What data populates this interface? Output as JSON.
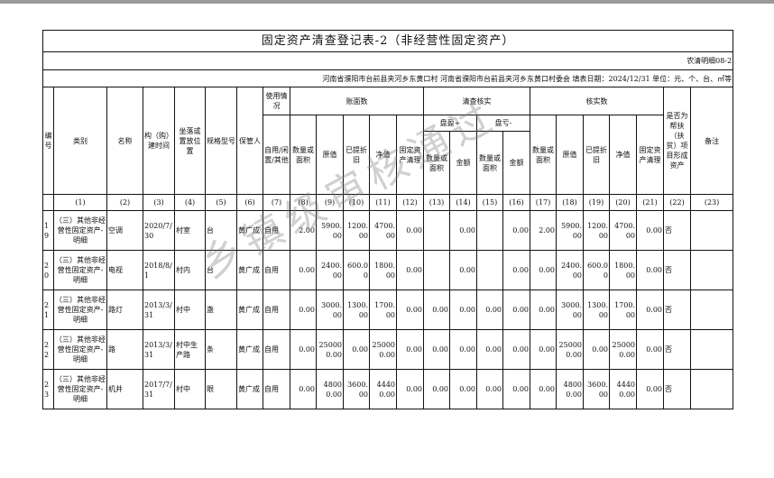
{
  "title": "固定资产清查登记表-2（非经营性固定资产）",
  "form_code": "农清明细08-2",
  "info": "河南省濮阳市台前县夹河乡东黄口村  河南省濮阳市台前县夹河乡东黄口村委会  填表日期：2024/12/31   单位：元、个、台、㎡等",
  "headers": {
    "no": "编号",
    "category": "类别",
    "name": "名称",
    "date": "构（购）建时间",
    "location": "坐落或置放位置",
    "spec": "规格型号",
    "keeper": "保管人",
    "usage": "使用情况",
    "usage_sub": "自用/闲置/其他",
    "book": "账面数",
    "check": "清查核实",
    "surplus": "盘盈+",
    "loss": "盘亏-",
    "verified": "核实数",
    "qty": "数量或面积",
    "orig": "原值",
    "dep": "已提折旧",
    "net": "净值",
    "clear": "固定资产清理",
    "amount": "金额",
    "poverty": "是否为帮扶（扶贫）项目形成资产",
    "remark": "备注"
  },
  "index_row": [
    "",
    "(1)",
    "(2)",
    "(3)",
    "(4)",
    "(5)",
    "(6)",
    "(7)",
    "(8)",
    "(9)",
    "(10)",
    "(11)",
    "(12)",
    "(13)",
    "(14)",
    "(15)",
    "(16)",
    "(17)",
    "(18)",
    "(19)",
    "(20)",
    "(21)",
    "(22)",
    "(23)"
  ],
  "rows": [
    [
      "19",
      "（三）其他非经营性固定资产-明细",
      "空调",
      "2020/7/30",
      "村室",
      "台",
      "黄广成",
      "自用",
      "2.00",
      "5900.00",
      "1200.00",
      "4700.00",
      "0.00",
      "",
      "0.00",
      "",
      "0.00",
      "2.00",
      "5900.00",
      "1200.00",
      "4700.00",
      "0.00",
      "否",
      ""
    ],
    [
      "20",
      "（三）其他非经营性固定资产-明细",
      "电视",
      "2018/8/1",
      "村内",
      "台",
      "黄广成",
      "自用",
      "0.00",
      "2400.00",
      "600.00",
      "1800.00",
      "0.00",
      "",
      "0.00",
      "",
      "0.00",
      "0.00",
      "2400.00",
      "600.00",
      "1800.00",
      "0.00",
      "否",
      ""
    ],
    [
      "21",
      "（三）其他非经营性固定资产-明细",
      "路灯",
      "2013/3/31",
      "村中",
      "盏",
      "黄广成",
      "自用",
      "0.00",
      "3000.00",
      "1300.00",
      "1700.00",
      "0.00",
      "0.00",
      "0.00",
      "0.00",
      "0.00",
      "0.00",
      "3000.00",
      "1300.00",
      "1700.00",
      "0.00",
      "否",
      ""
    ],
    [
      "22",
      "（三）其他非经营性固定资产-明细",
      "路",
      "2013/3/31",
      "村中生产路",
      "条",
      "黄广成",
      "自用",
      "0.00",
      "250000.00",
      "0.00",
      "250000.00",
      "0.00",
      "0.00",
      "0.00",
      "0.00",
      "0.00",
      "0.00",
      "250000.00",
      "0.00",
      "250000.00",
      "0.00",
      "否",
      ""
    ],
    [
      "23",
      "（三）其他非经营性固定资产-明细",
      "机井",
      "2017/7/31",
      "村中",
      "眼",
      "黄广成",
      "自用",
      "0.00",
      "48000.00",
      "3600.00",
      "44400.00",
      "0.00",
      "0.00",
      "0.00",
      "0.00",
      "0.00",
      "0.00",
      "48000.00",
      "3600.00",
      "44400.00",
      "0.00",
      "否",
      ""
    ]
  ],
  "watermark": "乡镇级审核通过"
}
